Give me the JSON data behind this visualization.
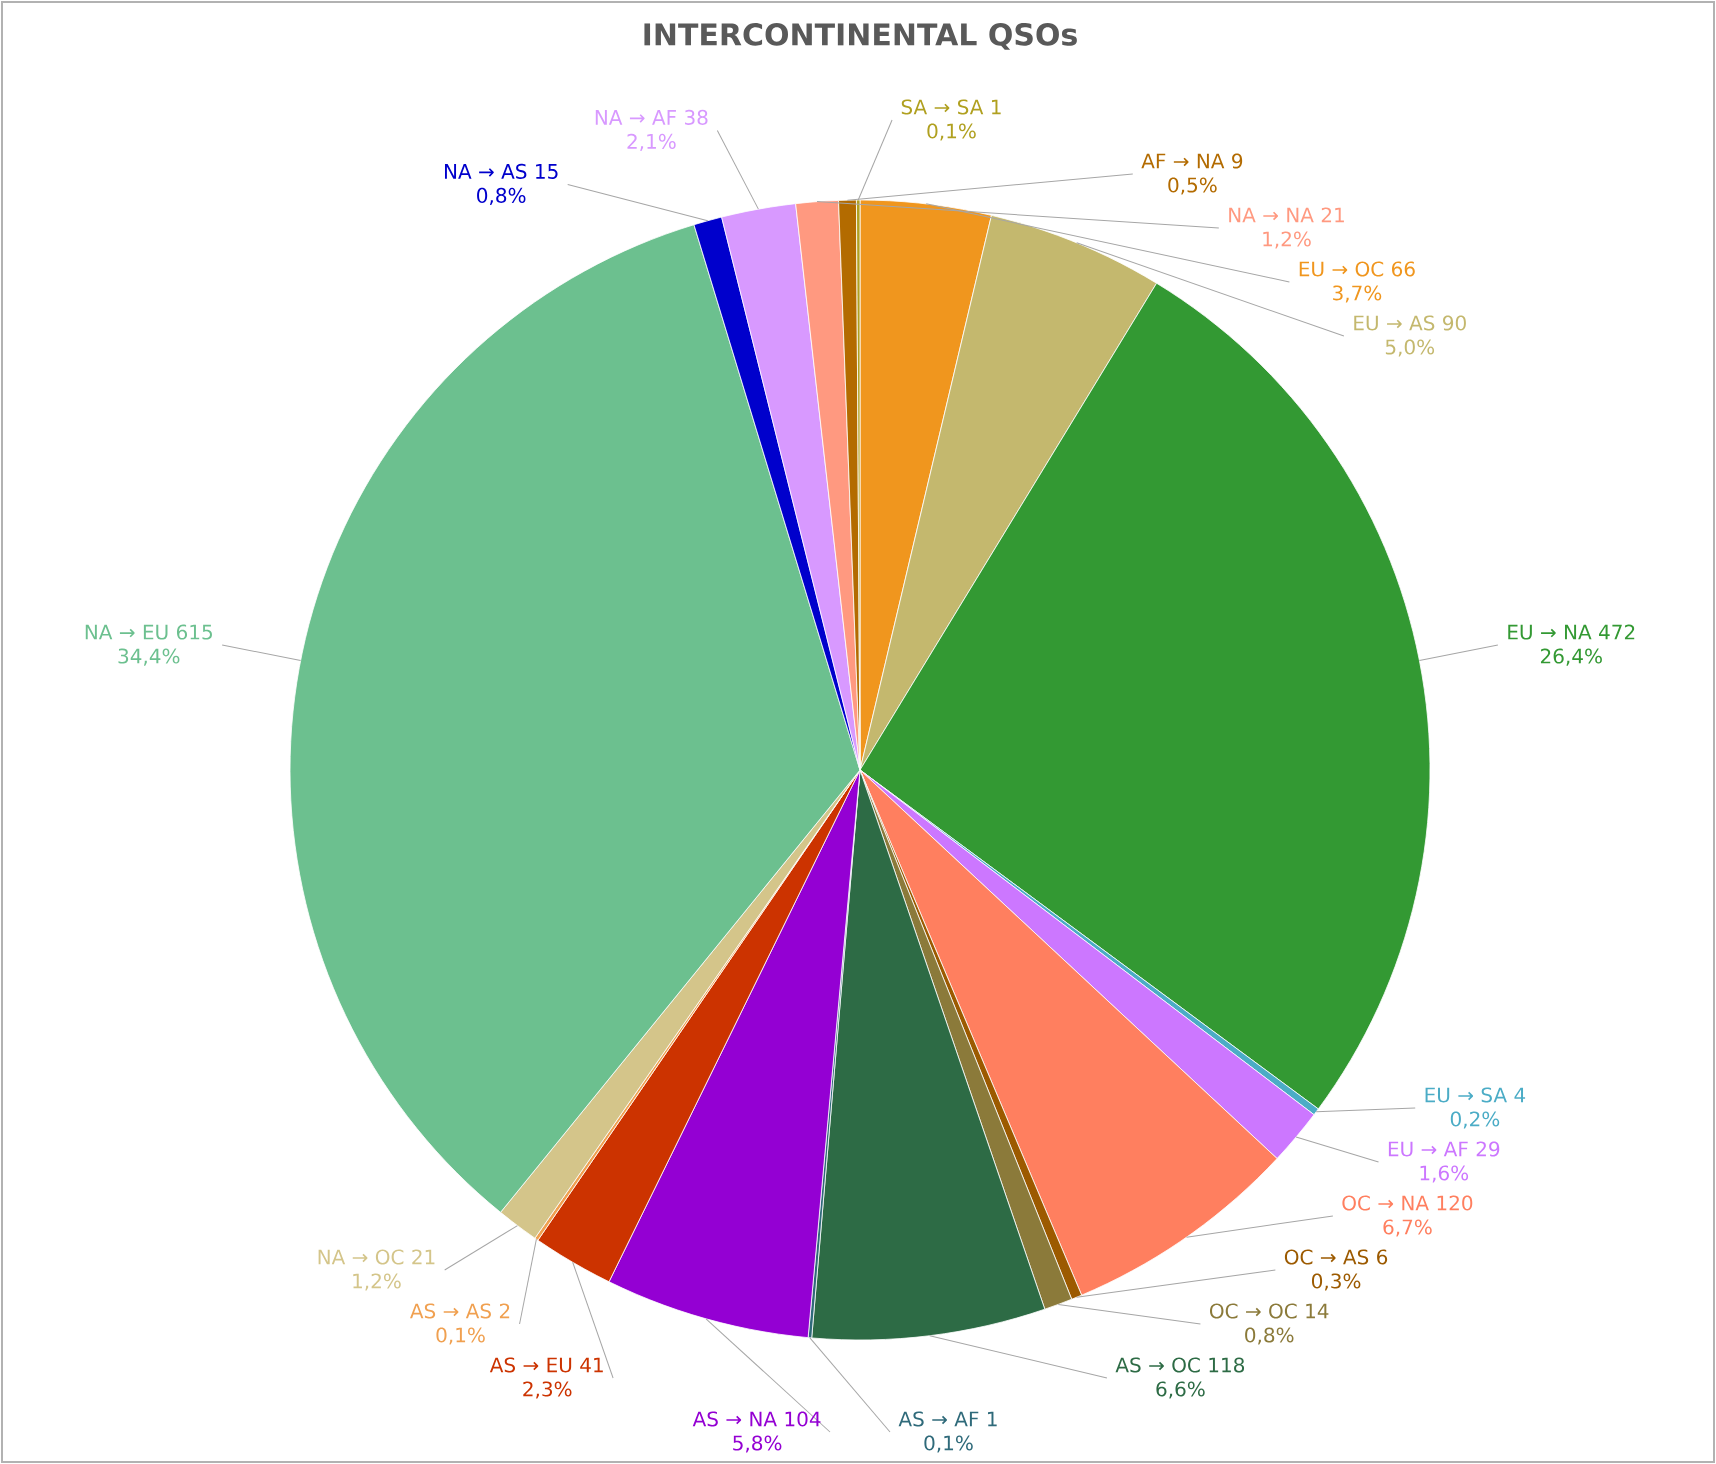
{
  "chart_data": {
    "type": "pie",
    "title": "INTERCONTINENTAL QSOs",
    "categories": [
      "EU → OC  66",
      "EU → AS  90",
      "EU → NA  472",
      "EU → SA  4",
      "EU → AF  29",
      "OC → NA  120",
      "OC → AS  6",
      "OC → OC  14",
      "AS → OC 118",
      "AS → AF  1",
      "AS → NA  104",
      "AS → EU  41",
      "AS → AS  2",
      "NA → OC  21",
      "NA → EU  615",
      "NA → AS  15",
      "NA → AF  38",
      "NA → NA  21",
      "AF → NA  9",
      "SA → SA  1"
    ],
    "values": [
      3.7,
      5.0,
      26.4,
      0.2,
      1.6,
      6.7,
      0.3,
      0.8,
      6.6,
      0.1,
      5.8,
      2.3,
      0.1,
      1.2,
      34.4,
      0.8,
      2.1,
      1.2,
      0.5,
      0.1
    ],
    "value_labels": [
      "3,7%",
      "5,0%",
      "26,4%",
      "0,2%",
      "1,6%",
      "6,7%",
      "0,3%",
      "0,8%",
      "6,6%",
      "0,1%",
      "5,8%",
      "2,3%",
      "0,1%",
      "1,2%",
      "34,4%",
      "0,8%",
      "2,1%",
      "1,2%",
      "0,5%",
      "0,1%"
    ],
    "colors": [
      "#f0961e",
      "#c4b86e",
      "#339933",
      "#4bacc6",
      "#cc77ff",
      "#ff7f5f",
      "#9c5a00",
      "#8b7a3a",
      "#2d6b45",
      "#2f6a7a",
      "#9400d3",
      "#cc3300",
      "#f0a050",
      "#d4c58a",
      "#6cc08f",
      "#0000cc",
      "#d899ff",
      "#ff9980",
      "#b36b00",
      "#b0a020"
    ]
  }
}
